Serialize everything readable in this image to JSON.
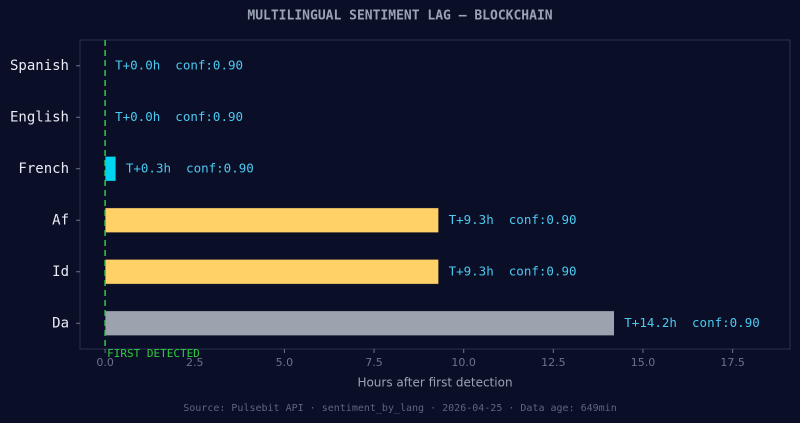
{
  "chart_data": {
    "type": "hbar",
    "title": "MULTILINGUAL SENTIMENT LAG — BLOCKCHAIN",
    "xlabel": "Hours after first detection",
    "footer": "Source: Pulsebit API · sentiment_by_lang · 2026-04-25 · Data age: 649min",
    "categories": [
      "Spanish",
      "English",
      "French",
      "Af",
      "Id",
      "Da"
    ],
    "values": [
      0.0,
      0.0,
      0.3,
      9.3,
      9.3,
      14.2
    ],
    "value_labels": [
      "T+0.0h  conf:0.90",
      "T+0.0h  conf:0.90",
      "T+0.3h  conf:0.90",
      "T+9.3h  conf:0.90",
      "T+9.3h  conf:0.90",
      "T+14.2h  conf:0.90"
    ],
    "colors": [
      "#00d4f0",
      "#00d4f0",
      "#00d4f0",
      "#ffd166",
      "#ffd166",
      "#9ca3af"
    ],
    "xlim": [
      -0.7,
      19.1
    ],
    "xticks": [
      {
        "value": 0,
        "label": "0.0"
      },
      2.5,
      {
        "value": 5,
        "label": "5.0"
      },
      7.5,
      {
        "value": 10,
        "label": "10.0"
      },
      12.5,
      {
        "value": 15,
        "label": "15.0"
      },
      17.5
    ],
    "vline": {
      "value": 0,
      "label": "FIRST DETECTED",
      "color": "#2ecc40"
    }
  }
}
